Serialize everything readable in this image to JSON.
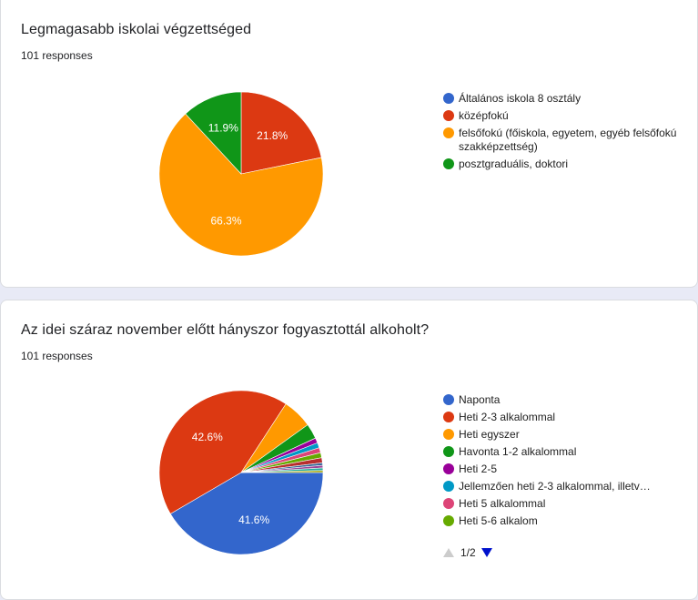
{
  "chart_data": [
    {
      "type": "pie",
      "title": "Legmagasabb iskolai végzettséged",
      "subtitle": "101 responses",
      "legend_position": "right",
      "start_angle_deg": 90,
      "labels": [
        "Általános iskola 8 osztály",
        "középfokú",
        "felsőfokú (főiskola, egyetem, egyéb felsőfokú szakképzettség)",
        "posztgraduális, doktori"
      ],
      "values": [
        0,
        21.8,
        66.3,
        11.9
      ],
      "display_labels": [
        "",
        "21.8%",
        "66.3%",
        "11.9%"
      ],
      "colors": [
        "#3366cc",
        "#dc3912",
        "#ff9900",
        "#109618"
      ]
    },
    {
      "type": "pie",
      "title": "Az idei száraz november előtt hányszor fogyasztottál alkoholt?",
      "subtitle": "101 responses",
      "legend_position": "right",
      "start_angle_deg": 0,
      "labels": [
        "Naponta",
        "Heti 2-3 alkalommal",
        "Heti egyszer",
        "Havonta 1-2 alkalommal",
        "Heti 2-5",
        "Jellemzően heti 2-3 alkalommal, illetv…",
        "Heti 5 alkalommal",
        "Heti 5-6 alkalom",
        "",
        "",
        "",
        "",
        ""
      ],
      "values": [
        41.6,
        42.6,
        5.9,
        3.0,
        1.0,
        1.0,
        1.0,
        1.0,
        1.0,
        0.5,
        0.5,
        0.5,
        0.4
      ],
      "display_labels": [
        "41.6%",
        "42.6%",
        "",
        "",
        "",
        "",
        "",
        "",
        "",
        "",
        "",
        "",
        ""
      ],
      "colors": [
        "#3366cc",
        "#dc3912",
        "#ff9900",
        "#109618",
        "#990099",
        "#0099c6",
        "#dd4477",
        "#66aa00",
        "#b82e2e",
        "#316395",
        "#994499",
        "#22aa99",
        "#aaaa11"
      ],
      "legend_visible_count": 8,
      "pager": "1/2"
    }
  ]
}
